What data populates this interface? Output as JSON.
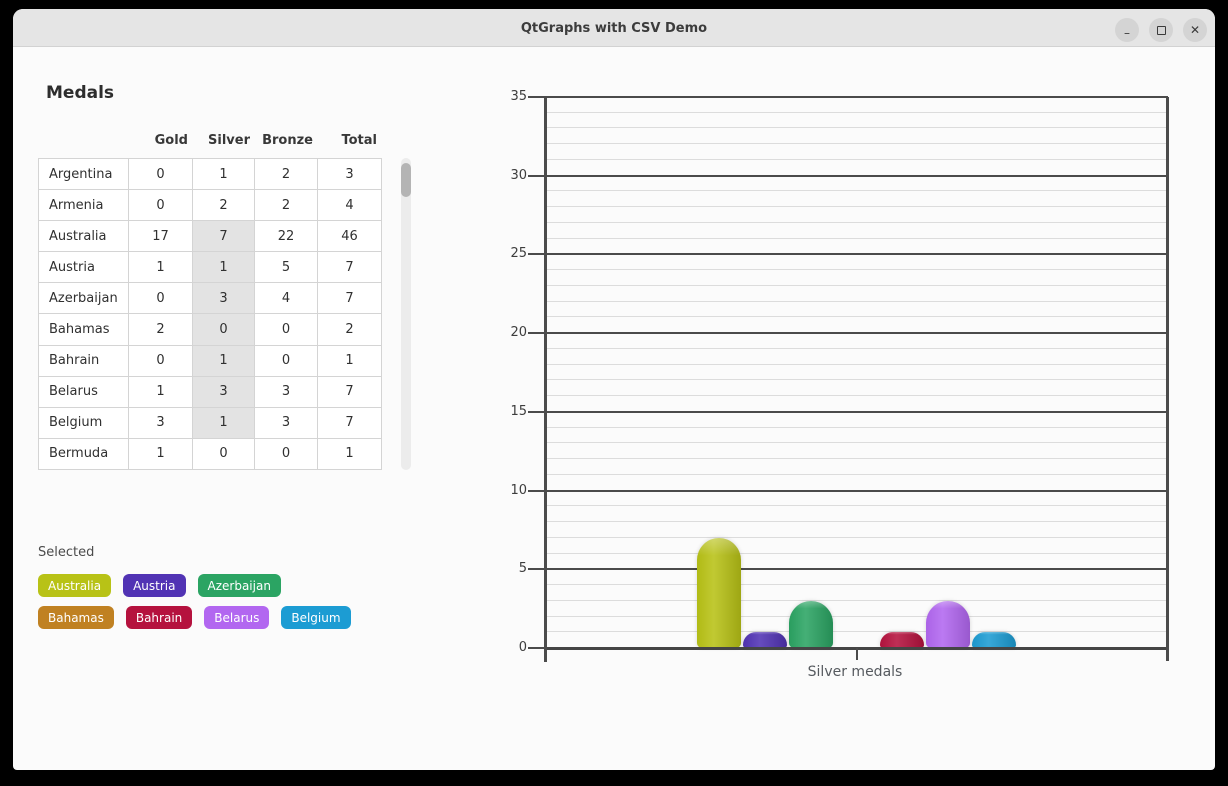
{
  "window": {
    "title": "QtGraphs with CSV Demo",
    "controls": [
      {
        "name": "minimize",
        "glyph": "–"
      },
      {
        "name": "maximize",
        "glyph": "square"
      },
      {
        "name": "close",
        "glyph": "✕"
      }
    ]
  },
  "left_panel": {
    "heading": "Medals",
    "selected_label": "Selected"
  },
  "table": {
    "columns": [
      "Gold",
      "Silver",
      "Bronze",
      "Total"
    ],
    "highlight_color": "#e3e3e3",
    "rows": [
      {
        "country": "Argentina",
        "gold": 0,
        "silver": 1,
        "bronze": 2,
        "total": 3
      },
      {
        "country": "Armenia",
        "gold": 0,
        "silver": 2,
        "bronze": 2,
        "total": 4
      },
      {
        "country": "Australia",
        "gold": 17,
        "silver": 7,
        "bronze": 22,
        "total": 46
      },
      {
        "country": "Austria",
        "gold": 1,
        "silver": 1,
        "bronze": 5,
        "total": 7
      },
      {
        "country": "Azerbaijan",
        "gold": 0,
        "silver": 3,
        "bronze": 4,
        "total": 7
      },
      {
        "country": "Bahamas",
        "gold": 2,
        "silver": 0,
        "bronze": 0,
        "total": 2
      },
      {
        "country": "Bahrain",
        "gold": 0,
        "silver": 1,
        "bronze": 0,
        "total": 1
      },
      {
        "country": "Belarus",
        "gold": 1,
        "silver": 3,
        "bronze": 3,
        "total": 7
      },
      {
        "country": "Belgium",
        "gold": 3,
        "silver": 1,
        "bronze": 3,
        "total": 7
      },
      {
        "country": "Bermuda",
        "gold": 1,
        "silver": 0,
        "bronze": 0,
        "total": 1
      }
    ]
  },
  "selected": [
    {
      "label": "Australia",
      "color": "#b8c216"
    },
    {
      "label": "Austria",
      "color": "#5133b4"
    },
    {
      "label": "Azerbaijan",
      "color": "#2ba463"
    },
    {
      "label": "Bahamas",
      "color": "#c08122"
    },
    {
      "label": "Bahrain",
      "color": "#b5123e"
    },
    {
      "label": "Belarus",
      "color": "#b267f0"
    },
    {
      "label": "Belgium",
      "color": "#1c9cd3"
    }
  ],
  "chart_data": {
    "type": "bar",
    "xlabel": "Silver medals",
    "categories": [
      "Australia",
      "Austria",
      "Azerbaijan",
      "Bahamas",
      "Bahrain",
      "Belarus",
      "Belgium"
    ],
    "values": [
      7,
      1,
      3,
      0,
      1,
      3,
      1
    ],
    "colors": [
      "#b8c216",
      "#5133b4",
      "#2ba463",
      "#c08122",
      "#b5123e",
      "#b267f0",
      "#1c9cd3"
    ],
    "ylim": [
      0,
      35
    ],
    "yticks": [
      0,
      5,
      10,
      15,
      20,
      25,
      30,
      35
    ],
    "minor_tick_interval": 1,
    "grid": true,
    "legend": false
  }
}
